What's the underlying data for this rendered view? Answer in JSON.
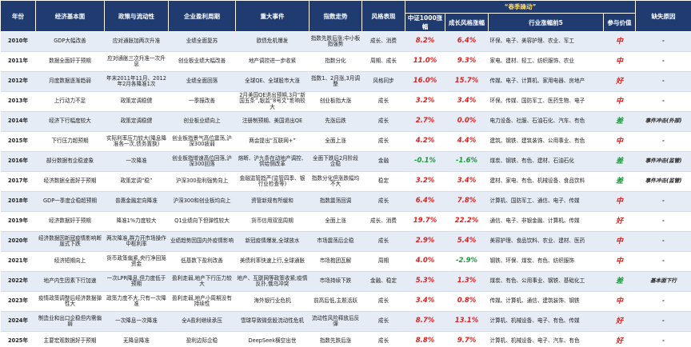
{
  "table": {
    "group_header": "“春季躁动”",
    "columns": [
      "年份",
      "经济基本面",
      "政策与流动性",
      "企业盈利周期",
      "重大事件",
      "指数走势",
      "风格表现",
      "中证1000涨幅",
      "成长风格涨幅",
      "行业涨幅前5",
      "参与价值",
      "缺失原因"
    ],
    "rows": [
      [
        "2010年",
        "GDP大幅改善",
        "应对通胀加两次升准",
        "业绩全面复苏",
        "欧债危机爆发",
        "指数先跌后涨;中小板指强势",
        "成长、消费",
        "8.2%",
        "6.4%",
        "环保、电子、美容护理、农业、军工",
        "中",
        "-"
      ],
      [
        "2011年",
        "数据全面好于预期",
        "应对通胀三次升准一次升息",
        "创业板业绩大幅改善",
        "地产调控进一步收紧",
        "指数分化",
        "周期、成长",
        "11.0%",
        "9.3%",
        "家电、建材、轻工、纺织服饰、农业",
        "中",
        "-"
      ],
      [
        "2012年",
        "月度数据逐渐趋弱",
        "年末2011年11月、2012年2月各降准1次",
        "业绩全面回落",
        "全球QE、全球股市大涨",
        "指数1、2月涨,3月调整",
        "风格同步",
        "16.0%",
        "15.7%",
        "传媒、电子、计算机、家用电器、房地产",
        "好",
        "-"
      ],
      [
        "2013年",
        "上行动力不足",
        "政策定调稳健",
        "一季报改善",
        "2月美国QE退出预期,3月“新国五条”,银监“8号文”影响较大",
        "创业板指大涨",
        "成长",
        "3.2%",
        "3.4%",
        "环保、传媒、国防军工、医药生物、电子",
        "中",
        "-"
      ],
      [
        "2014年",
        "经济下行幅度较大",
        "政策定调稳健",
        "创业板业绩向上",
        "注册制预期、美国退出QE",
        "先涨后跌",
        "成长",
        "2.7%",
        "0.0%",
        "电力设备、社服、石油石化、汽车、有色",
        "差",
        "事件冲击(外部)"
      ],
      [
        "2015年",
        "下行压力超预期",
        "实际利率压力较大(降息降准各一次,债务置换)",
        "创业板指景气高位震荡,沪深300疲弱",
        "两会提出“互联网+”",
        "全面上涨",
        "成长",
        "4.2%",
        "4.4%",
        "建筑、钢铁、建筑装饰、公用事业、有色",
        "中",
        "-"
      ],
      [
        "2016年",
        "部分数据有企稳迹象",
        "一次降准",
        "创业板指增速高位回落,沪深300回落",
        "熔断、沪九条在动地产调控、供给侧改革",
        "全面下跌后2月阶段企稳",
        "金融",
        "-0.1%",
        "-1.6%",
        "煤炭、钢铁、有色、建材、石油石化",
        "差",
        "事件冲击(监管)"
      ],
      [
        "2017年",
        "经济数据全面好于预期",
        "政策定调“稳”",
        "沪深300盈利强势向上",
        "金融监管趋严(监管四季、银行业检查等)",
        "指数分化但涨跌幅均不大",
        "稳定",
        "3.2%",
        "3.4%",
        "建材、家电、有色、机械设备、食品饮料",
        "差",
        "事件冲击(监管)"
      ],
      [
        "2018年",
        "GDP一季度企稳超预期",
        "普惠金融定向降准",
        "沪深300和创业板均向上",
        "资管新规有所缓和",
        "指数震荡回调",
        "成长",
        "6.4%",
        "7.8%",
        "计算机、国防军工、通信、电子、传媒",
        "中",
        "-"
      ],
      [
        "2019年",
        "经济数据好于预期",
        "降准1%力度较大",
        "Q1业绩向下但弹性较大",
        "货币信用双宽周期",
        "全面上涨",
        "成长、消费",
        "19.7%",
        "22.2%",
        "通信、电子、非银金融、计算机、传媒",
        "好",
        "-"
      ],
      [
        "2020年",
        "经济数据因新冠疫情影响断崖式下跌",
        "两次降准,群力开市场操作中枢利率",
        "业绩趋势因国内外疫情影响",
        "新冠疫情爆发,全球放水",
        "市场震荡后企稳",
        "成长",
        "2.9%",
        "5.4%",
        "美容护理、食品饮料、农业、建材、医药",
        "中",
        "-"
      ],
      [
        "2021年",
        "经济短期向上",
        "货币政策偏紧,央行净回笼资金",
        "低基数下盈利改善",
        "美债利率快速上行,全球通胀",
        "市场抱团瓦解",
        "周期",
        "4.0%",
        "-2.9%",
        "钢铁、环保、煤炭、有色、纺织服饰",
        "中",
        "-"
      ],
      [
        "2022年",
        "地产内生因素下行加速",
        "一次LPR降息,但力度低于预期",
        "盈利走弱,地产下行压力较大",
        "地产、互联网等政策收紧;疫情反扑,俄乌冲突",
        "市场持续下跌",
        "金融、稳定",
        "5.3%",
        "1.3%",
        "煤炭、有色、公用事业、钢铁、基础化工",
        "差",
        "基本面下行"
      ],
      [
        "2023年",
        "疫情政策调整后经济数据弹性大",
        "政策力度不大,只有一次降准",
        "盈利走弱,地产小周期没有持续性",
        "海外银行业危机",
        "前高后低,主题活跃",
        "成长",
        "3.4%",
        "0.8%",
        "传媒、计算机、通信、建筑装饰、钢铁",
        "中",
        "-"
      ],
      [
        "2024年",
        "制造业和出口企稳但内需偏弱",
        "一次降息一次降准",
        "全A盈利继续承压",
        "雪球导致微盘股流动性危机",
        "流动性风险释放后反弹",
        "成长",
        "8.7%",
        "13.1%",
        "计算机、机械设备、电子、有色、传媒",
        "好",
        "-"
      ],
      [
        "2025年",
        "主要宏观数据好于预期",
        "无降息降准",
        "盈利边际企稳",
        "DeepSeek横空出世",
        "指数先跌后涨",
        "成长",
        "8.8%",
        "9.7%",
        "计算机、机械设备、电子、汽车、有色",
        "好",
        "-"
      ]
    ],
    "rating_colors": [
      "#e02020",
      "#e02020",
      "#e02020",
      "#e02020",
      "#1a9a3a",
      "#e02020",
      "#1a9a3a",
      "#1a9a3a",
      "#e02020",
      "#e02020",
      "#e02020",
      "#e02020",
      "#1a9a3a",
      "#e02020",
      "#e02020",
      "#e02020"
    ]
  }
}
